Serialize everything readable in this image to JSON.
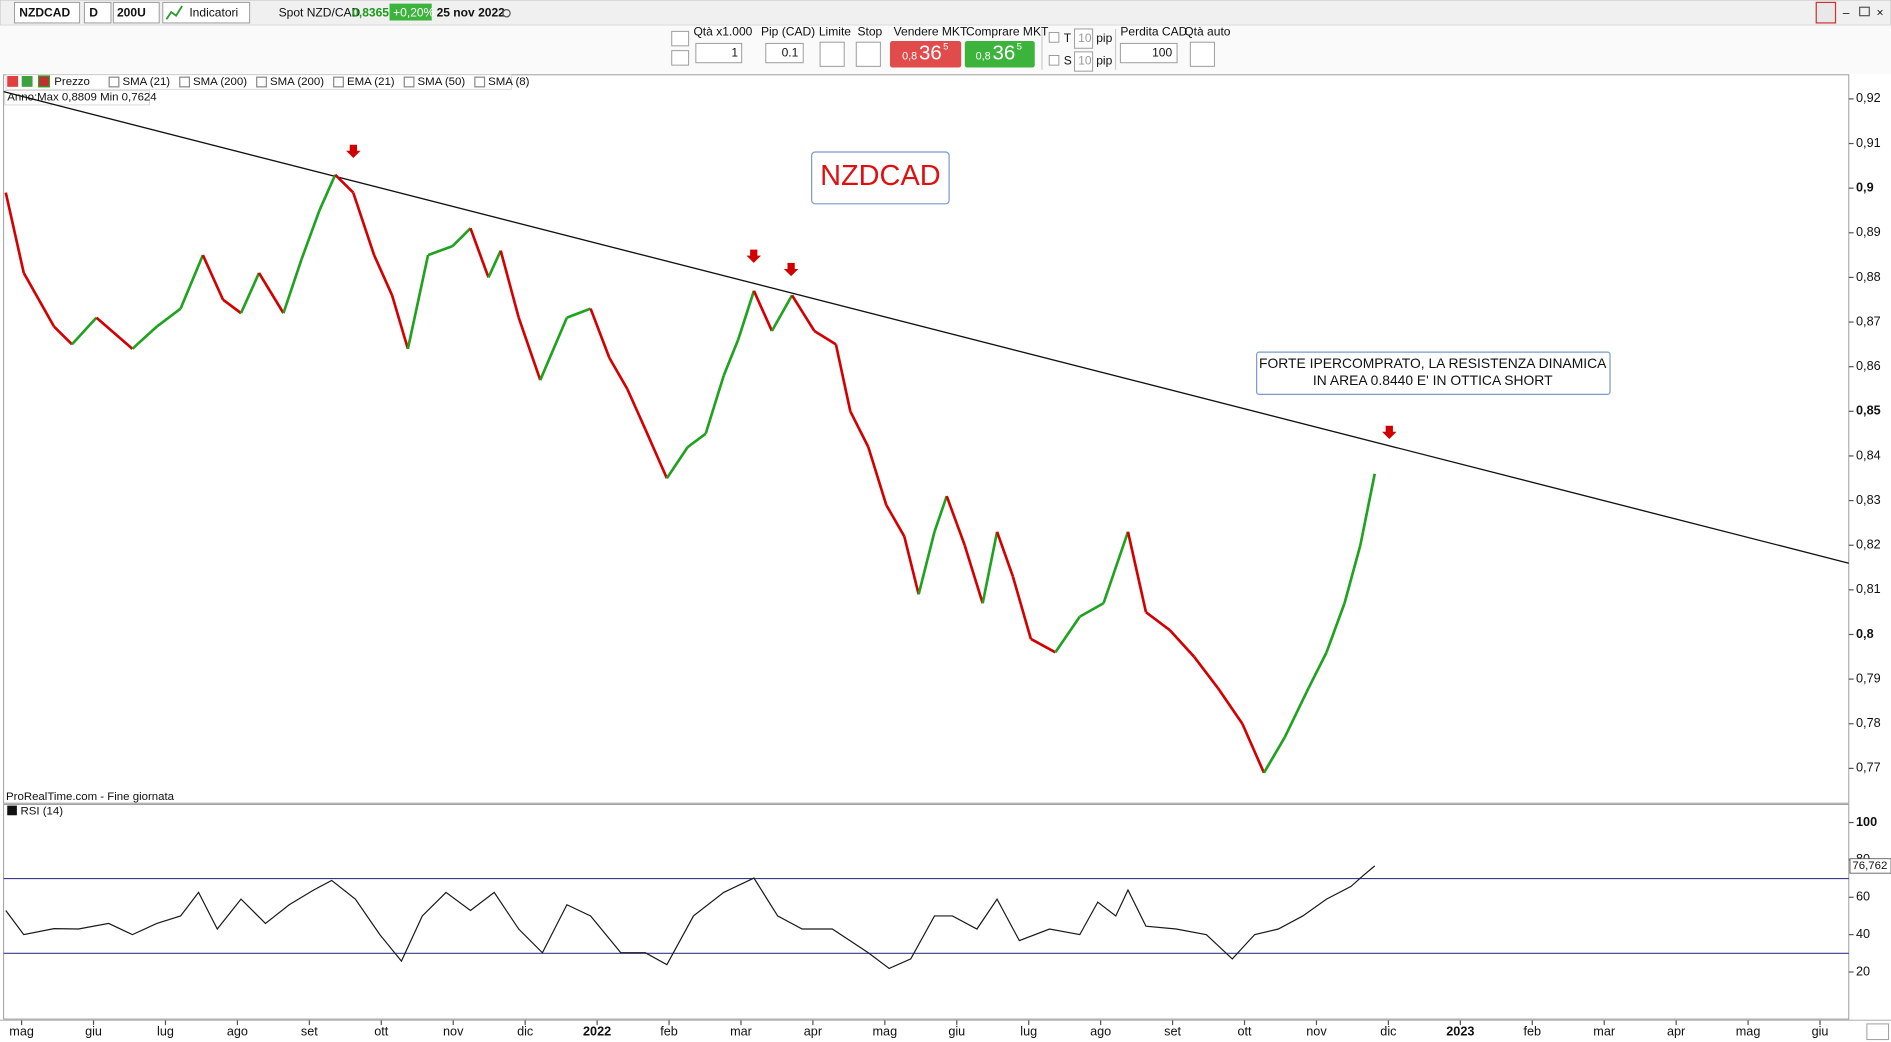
{
  "toolbar": {
    "symbol": "NZDCAD",
    "timeframe": "D",
    "units": "200U",
    "indicators": "Indicatori",
    "instrument": "Spot NZD/CAD",
    "price": "0,8365",
    "change": "+0,20%",
    "date": "25 nov 2022"
  },
  "order_panel": {
    "qty_label": "Qtà x1.000",
    "qty": "1",
    "pip_label": "Pip (CAD)",
    "pip": "0.1",
    "limit": "Limite",
    "stop": "Stop",
    "sell_label": "Vendere MKT",
    "sell_price": [
      "0,8",
      "36",
      "5"
    ],
    "buy_label": "Comprare MKT",
    "buy_price": [
      "0,8",
      "36",
      "5"
    ],
    "t_label": "T",
    "t_value": "10",
    "s_label": "S",
    "s_value": "10",
    "pip_unit": "pip",
    "loss_label": "Perdita CAD",
    "loss_value": "100",
    "auto_qty": "Qtà auto"
  },
  "indicator_legend": [
    "Prezzo",
    "SMA (21)",
    "SMA (200)",
    "SMA (200)",
    "EMA (21)",
    "SMA (50)",
    "SMA (8)"
  ],
  "notes": {
    "symbol_box": "NZDCAD",
    "comment": [
      "FORTE IPERCOMPRATO, LA RESISTENZA DINAMICA",
      "IN AREA 0.8440 E' IN OTTICA SHORT"
    ],
    "range": "Anno:Max 0,8809 Min 0,7624",
    "source": "ProRealTime.com - Fine giornata"
  },
  "chart_data": [
    {
      "type": "line",
      "up_color": "#1fa31f",
      "down_color": "#d40000",
      "xlim": [
        -0.25,
        25.4
      ],
      "ylim": [
        0.7622,
        0.9254
      ],
      "yticks": [
        {
          "value": 0.77,
          "label": "0,77"
        },
        {
          "value": 0.78,
          "label": "0,78"
        },
        {
          "value": 0.79,
          "label": "0,79"
        },
        {
          "value": 0.8,
          "label": "0,8"
        },
        {
          "value": 0.81,
          "label": "0,81"
        },
        {
          "value": 0.82,
          "label": "0,82"
        },
        {
          "value": 0.83,
          "label": "0,83"
        },
        {
          "value": 0.84,
          "label": "0,84"
        },
        {
          "value": 0.85,
          "label": "0,85"
        },
        {
          "value": 0.86,
          "label": "0,86"
        },
        {
          "value": 0.87,
          "label": "0,87"
        },
        {
          "value": 0.88,
          "label": "0,88"
        },
        {
          "value": 0.89,
          "label": "0,89"
        },
        {
          "value": 0.9,
          "label": "0,9"
        },
        {
          "value": 0.91,
          "label": "0,91"
        },
        {
          "value": 0.92,
          "label": "0,92"
        }
      ],
      "x": [
        -0.22,
        0.03,
        0.45,
        0.7,
        1.04,
        1.54,
        1.88,
        2.21,
        2.52,
        2.8,
        3.05,
        3.3,
        3.64,
        3.89,
        4.14,
        4.36,
        4.61,
        4.9,
        5.15,
        5.37,
        5.65,
        5.99,
        6.24,
        6.49,
        6.66,
        6.91,
        7.21,
        7.58,
        7.91,
        8.17,
        8.42,
        8.67,
        8.97,
        9.26,
        9.51,
        9.76,
        9.96,
        10.18,
        10.43,
        10.71,
        11.02,
        11.32,
        11.52,
        11.77,
        12.02,
        12.27,
        12.47,
        12.69,
        12.86,
        13.11,
        13.36,
        13.56,
        13.78,
        14.03,
        14.37,
        14.71,
        15.04,
        15.38,
        15.63,
        15.96,
        16.3,
        16.63,
        16.97,
        17.27,
        17.56,
        17.89,
        18.14,
        18.39,
        18.61,
        18.81
      ],
      "series": [
        {
          "values": [
            0.899,
            0.881,
            0.869,
            0.865,
            0.871,
            0.864,
            0.869,
            0.873,
            0.885,
            0.875,
            0.872,
            0.881,
            0.872,
            0.884,
            0.895,
            0.903,
            0.899,
            0.885,
            0.876,
            0.864,
            0.885,
            0.887,
            0.891,
            0.88,
            0.886,
            0.871,
            0.857,
            0.871,
            0.873,
            0.862,
            0.855,
            0.846,
            0.835,
            0.842,
            0.845,
            0.858,
            0.866,
            0.877,
            0.868,
            0.876,
            0.868,
            0.865,
            0.85,
            0.842,
            0.829,
            0.822,
            0.809,
            0.823,
            0.831,
            0.82,
            0.807,
            0.823,
            0.813,
            0.799,
            0.796,
            0.804,
            0.807,
            0.823,
            0.805,
            0.801,
            0.795,
            0.788,
            0.78,
            0.769,
            0.777,
            0.788,
            0.796,
            0.807,
            0.82,
            0.836
          ]
        }
      ]
    },
    {
      "type": "line",
      "title": "RSI (14)",
      "xlim": [
        -0.25,
        25.4
      ],
      "ylim": [
        -5.2,
        109.7
      ],
      "yticks": [
        20,
        40,
        60,
        80,
        100
      ],
      "hlines": [
        70,
        30
      ],
      "line_color": "#1a1a1a",
      "level_color": "#3a3a8a",
      "last_value": {
        "value": 76.762,
        "label": "76,762"
      },
      "xticks": [
        {
          "value": 0,
          "label": "mag"
        },
        {
          "value": 1,
          "label": "giu"
        },
        {
          "value": 2,
          "label": "lug"
        },
        {
          "value": 3,
          "label": "ago"
        },
        {
          "value": 4,
          "label": "set"
        },
        {
          "value": 5,
          "label": "ott"
        },
        {
          "value": 6,
          "label": "nov"
        },
        {
          "value": 7,
          "label": "dic"
        },
        {
          "value": 8,
          "label": "2022"
        },
        {
          "value": 9,
          "label": "feb"
        },
        {
          "value": 10,
          "label": "mar"
        },
        {
          "value": 11,
          "label": "apr"
        },
        {
          "value": 12,
          "label": "mag"
        },
        {
          "value": 13,
          "label": "giu"
        },
        {
          "value": 14,
          "label": "lug"
        },
        {
          "value": 15,
          "label": "ago"
        },
        {
          "value": 16,
          "label": "set"
        },
        {
          "value": 17,
          "label": "ott"
        },
        {
          "value": 18,
          "label": "nov"
        },
        {
          "value": 19,
          "label": "dic"
        },
        {
          "value": 20,
          "label": "2023"
        },
        {
          "value": 21,
          "label": "feb"
        },
        {
          "value": 22,
          "label": "mar"
        },
        {
          "value": 23,
          "label": "apr"
        },
        {
          "value": 24,
          "label": "mag"
        },
        {
          "value": 25,
          "label": "giu"
        }
      ],
      "x": [
        -0.22,
        0.03,
        0.45,
        0.79,
        1.21,
        1.54,
        1.88,
        2.21,
        2.46,
        2.72,
        3.05,
        3.39,
        3.72,
        4.06,
        4.31,
        4.64,
        4.98,
        5.28,
        5.57,
        5.9,
        6.24,
        6.57,
        6.91,
        7.24,
        7.58,
        7.91,
        8.33,
        8.67,
        8.97,
        9.34,
        9.76,
        10.18,
        10.51,
        10.85,
        11.27,
        11.77,
        12.06,
        12.36,
        12.69,
        12.94,
        13.28,
        13.56,
        13.87,
        14.29,
        14.71,
        14.96,
        15.21,
        15.38,
        15.63,
        16.05,
        16.47,
        16.83,
        17.14,
        17.47,
        17.81,
        18.14,
        18.48,
        18.65,
        18.81
      ],
      "series": [
        {
          "values": [
            52.9,
            40,
            43.2,
            43,
            46,
            40,
            46,
            50,
            62.6,
            43,
            59,
            46,
            56,
            63.9,
            69,
            59,
            40,
            25.8,
            50,
            62.6,
            52.9,
            62.6,
            43,
            30.3,
            56,
            50,
            30.3,
            30.3,
            23.9,
            50,
            62.6,
            70.3,
            50,
            43,
            43,
            30.3,
            21.9,
            27,
            50,
            50,
            43,
            59,
            36.8,
            43,
            40,
            57.4,
            50,
            63.9,
            44.5,
            43,
            40,
            27,
            40,
            43,
            50,
            59,
            65.8,
            71.6,
            76.8
          ]
        }
      ]
    }
  ]
}
